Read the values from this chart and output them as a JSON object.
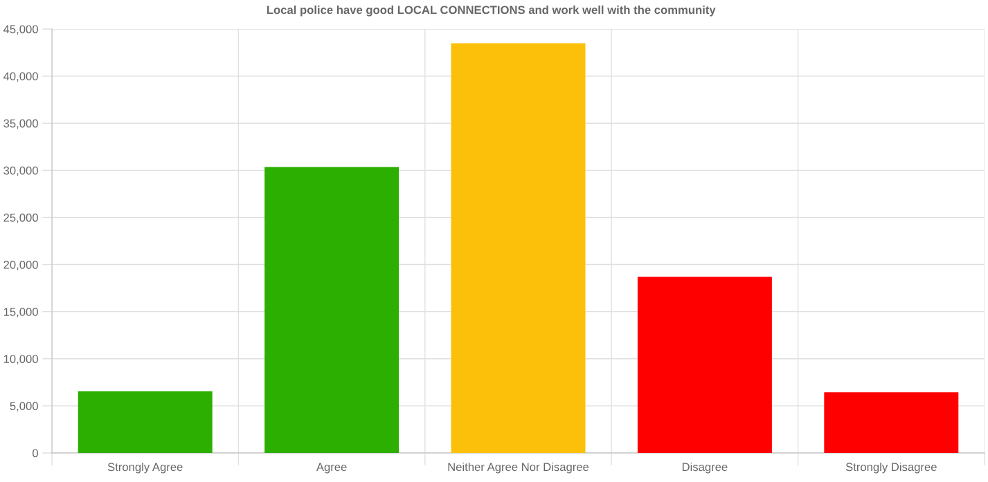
{
  "chart_data": {
    "type": "bar",
    "title": "Local police have good LOCAL CONNECTIONS and work well with the community",
    "categories": [
      "Strongly Agree",
      "Agree",
      "Neither Agree Nor Disagree",
      "Disagree",
      "Strongly Disagree"
    ],
    "values": [
      6550,
      30350,
      43500,
      18700,
      6450
    ],
    "colors": [
      "#2caf00",
      "#2caf00",
      "#fdc00a",
      "#ff0000",
      "#ff0000"
    ],
    "ylim": [
      0,
      45000
    ],
    "yticks": [
      {
        "value": 0,
        "label": "0"
      },
      {
        "value": 5000,
        "label": "5,000"
      },
      {
        "value": 10000,
        "label": "10,000"
      },
      {
        "value": 15000,
        "label": "15,000"
      },
      {
        "value": 20000,
        "label": "20,000"
      },
      {
        "value": 25000,
        "label": "25,000"
      },
      {
        "value": 30000,
        "label": "30,000"
      },
      {
        "value": 35000,
        "label": "35,000"
      },
      {
        "value": 40000,
        "label": "40,000"
      },
      {
        "value": 45000,
        "label": "45,000"
      }
    ],
    "grid": true,
    "legend": false
  }
}
